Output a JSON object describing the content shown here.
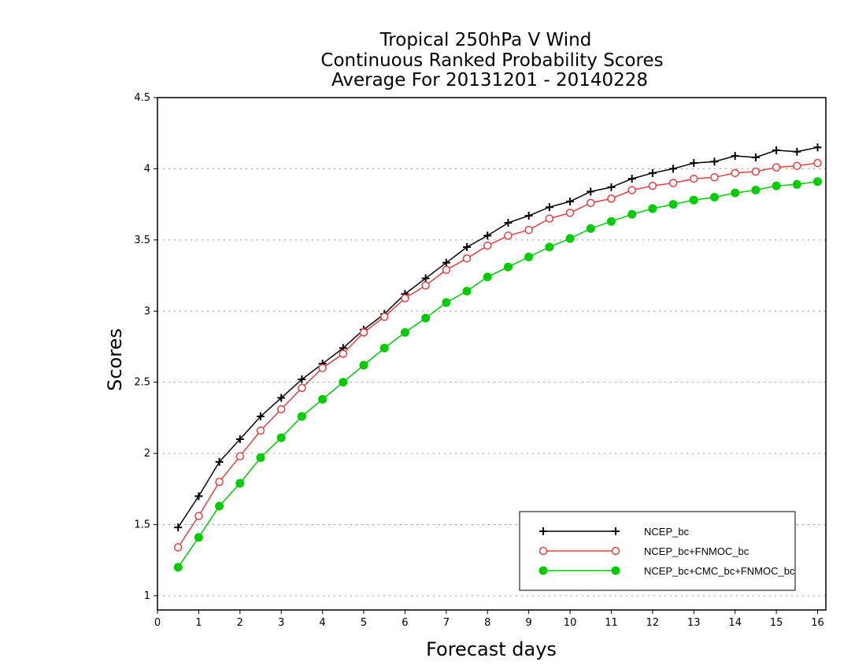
{
  "chart_data": {
    "type": "line",
    "title": [
      "Tropical 250hPa V Wind",
      "Continuous Ranked Probability Scores",
      "Average For 20131201 - 20140228"
    ],
    "xlabel": "Forecast days",
    "ylabel": "Scores",
    "xlim": [
      0,
      16.2
    ],
    "ylim": [
      0.9,
      4.5
    ],
    "xticks": [
      0,
      1,
      2,
      3,
      4,
      5,
      6,
      7,
      8,
      9,
      10,
      11,
      12,
      13,
      14,
      15,
      16
    ],
    "yticks": [
      1,
      1.5,
      2,
      2.5,
      3,
      3.5,
      4,
      4.5
    ],
    "ytick_labels": [
      "1",
      "1.5",
      "2",
      "2.5",
      "3",
      "3.5",
      "4",
      "4.5"
    ],
    "grid": "horizontal dotted",
    "legend_position": "bottom-right",
    "x": [
      0.5,
      1,
      1.5,
      2,
      2.5,
      3,
      3.5,
      4,
      4.5,
      5,
      5.5,
      6,
      6.5,
      7,
      7.5,
      8,
      8.5,
      9,
      9.5,
      10,
      10.5,
      11,
      11.5,
      12,
      12.5,
      13,
      13.5,
      14,
      14.5,
      15,
      15.5,
      16
    ],
    "series": [
      {
        "name": "NCEP_bc",
        "color": "#000000",
        "marker": "plus",
        "values": [
          1.48,
          1.7,
          1.94,
          2.1,
          2.26,
          2.39,
          2.52,
          2.63,
          2.74,
          2.87,
          2.98,
          3.12,
          3.23,
          3.34,
          3.45,
          3.53,
          3.62,
          3.67,
          3.73,
          3.77,
          3.84,
          3.87,
          3.93,
          3.97,
          4.0,
          4.04,
          4.05,
          4.09,
          4.08,
          4.13,
          4.12,
          4.15
        ]
      },
      {
        "name": "NCEP_bc+FNMOC_bc",
        "color": "#e04040",
        "marker": "open-circle",
        "values": [
          1.34,
          1.56,
          1.8,
          1.98,
          2.16,
          2.31,
          2.46,
          2.6,
          2.7,
          2.85,
          2.96,
          3.09,
          3.18,
          3.29,
          3.37,
          3.46,
          3.53,
          3.57,
          3.65,
          3.69,
          3.76,
          3.79,
          3.85,
          3.88,
          3.9,
          3.93,
          3.94,
          3.97,
          3.98,
          4.01,
          4.02,
          4.04
        ]
      },
      {
        "name": "NCEP_bc+CMC_bc+FNMOC_bc",
        "color": "#00cc00",
        "marker": "filled-circle",
        "values": [
          1.2,
          1.41,
          1.63,
          1.79,
          1.97,
          2.11,
          2.26,
          2.38,
          2.5,
          2.62,
          2.74,
          2.85,
          2.95,
          3.06,
          3.14,
          3.24,
          3.31,
          3.38,
          3.45,
          3.51,
          3.58,
          3.63,
          3.68,
          3.72,
          3.75,
          3.78,
          3.8,
          3.83,
          3.85,
          3.88,
          3.89,
          3.91
        ]
      }
    ]
  }
}
